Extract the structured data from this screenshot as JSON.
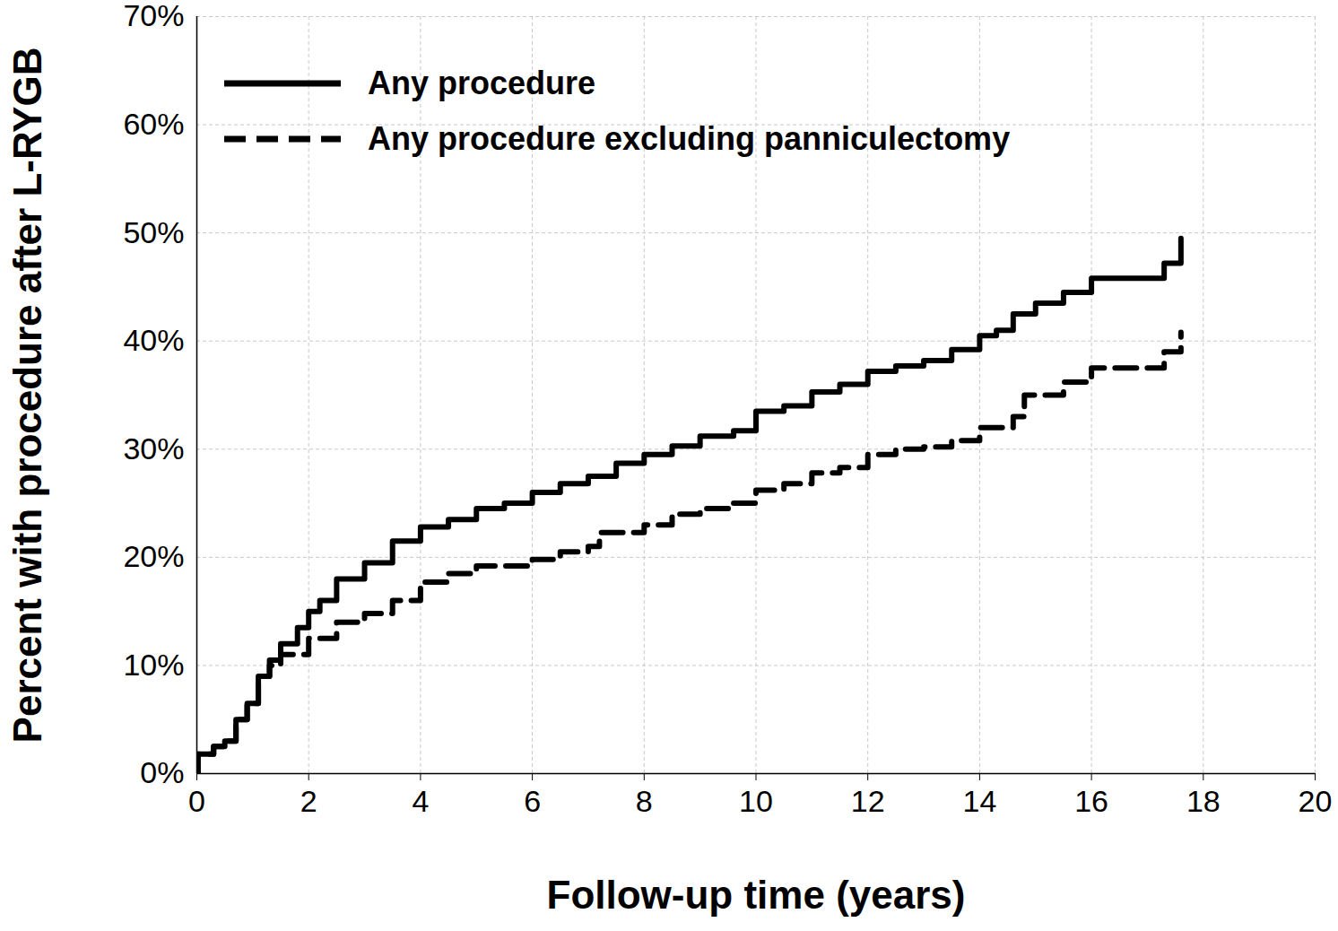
{
  "chart_data": {
    "type": "line",
    "xlabel": "Follow-up time (years)",
    "ylabel": "Percent with procedure after L-RYGB",
    "xlim": [
      0,
      20
    ],
    "xticks": [
      0,
      2,
      4,
      6,
      8,
      10,
      12,
      14,
      16,
      18,
      20
    ],
    "ylim": [
      0,
      70
    ],
    "yticks": [
      {
        "value": 0,
        "label": "0%"
      },
      {
        "value": 10,
        "label": "10%"
      },
      {
        "value": 20,
        "label": "20%"
      },
      {
        "value": 30,
        "label": "30%"
      },
      {
        "value": 40,
        "label": "40%"
      },
      {
        "value": 50,
        "label": "50%"
      },
      {
        "value": 60,
        "label": "60%"
      },
      {
        "value": 70,
        "label": "70%"
      }
    ],
    "grid": true,
    "legend": "top-left",
    "series": [
      {
        "name": "Any procedure",
        "color": "#000000",
        "line_style": "solid",
        "x": [
          0,
          0.02,
          0.3,
          0.5,
          0.7,
          0.9,
          1.1,
          1.3,
          1.5,
          1.8,
          2,
          2.2,
          2.5,
          3,
          3.5,
          4,
          4.5,
          5,
          5.5,
          6,
          6.5,
          7,
          7.5,
          8,
          8.5,
          9,
          9.6,
          10,
          10.5,
          11,
          11.5,
          12,
          12.5,
          13,
          13.5,
          14,
          14.3,
          14.6,
          15,
          15.5,
          16,
          17.2,
          17.3,
          17.55,
          17.6
        ],
        "values": [
          0,
          1.8,
          2.5,
          3,
          5,
          6.5,
          9,
          10.5,
          12,
          13.5,
          15,
          16,
          18,
          19.5,
          21.5,
          22.8,
          23.5,
          24.5,
          25,
          26,
          26.8,
          27.5,
          28.7,
          29.5,
          30.3,
          31.2,
          31.7,
          33.5,
          34,
          35.3,
          36,
          37.2,
          37.7,
          38.2,
          39.2,
          40.5,
          41,
          42.5,
          43.5,
          44.5,
          45.8,
          45.8,
          47.2,
          47.2,
          49.5
        ]
      },
      {
        "name": "Any procedure excluding panniculectomy",
        "color": "#000000",
        "line_style": "dashed",
        "x": [
          0,
          0.02,
          0.3,
          0.5,
          0.7,
          0.9,
          1.1,
          1.3,
          1.5,
          2,
          2.5,
          3,
          3.5,
          4,
          4.5,
          5,
          6,
          6.5,
          7,
          7.2,
          8,
          8.5,
          9,
          9.6,
          10,
          10.5,
          11,
          11.5,
          12,
          12.5,
          13,
          13.5,
          14,
          14.6,
          14.8,
          15.5,
          16,
          17.2,
          17.3,
          17.6
        ],
        "values": [
          0,
          1.8,
          2.5,
          3,
          5,
          6.5,
          9,
          10,
          11,
          12.5,
          14,
          14.8,
          16,
          17.7,
          18.5,
          19.2,
          19.8,
          20.5,
          21,
          22.3,
          23,
          24,
          24.5,
          25,
          26.2,
          26.8,
          27.8,
          28.3,
          29.5,
          30,
          30.2,
          30.8,
          32,
          33,
          35,
          36.2,
          37.5,
          37.5,
          39,
          40.8
        ]
      }
    ]
  }
}
